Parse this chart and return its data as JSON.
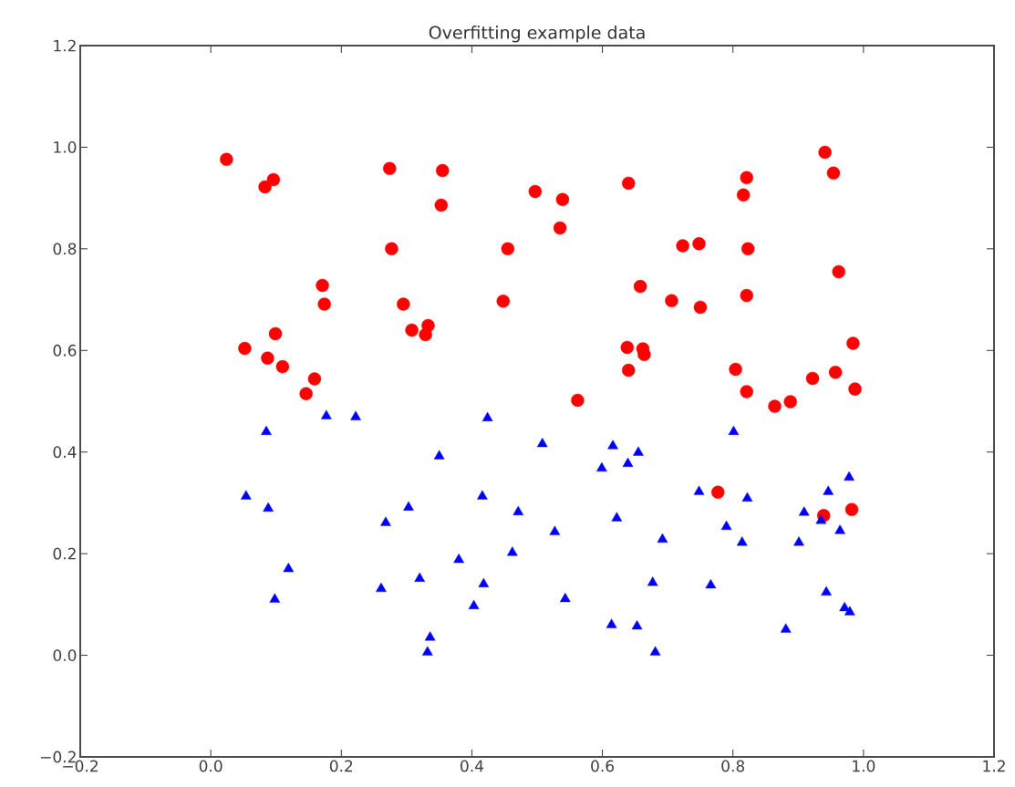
{
  "chart_data": {
    "type": "scatter",
    "title": "Overfitting example data",
    "xlim": [
      -0.2,
      1.2
    ],
    "ylim": [
      -0.2,
      1.2
    ],
    "xticks": [
      {
        "value": -0.2,
        "label": "−0.2"
      },
      {
        "value": 0,
        "label": "0.0"
      },
      {
        "value": 0.2,
        "label": "0.2"
      },
      {
        "value": 0.4,
        "label": "0.4"
      },
      {
        "value": 0.6,
        "label": "0.6"
      },
      {
        "value": 0.8,
        "label": "0.8"
      },
      {
        "value": 1,
        "label": "1.0"
      },
      {
        "value": 1.2,
        "label": "1.2"
      }
    ],
    "yticks": [
      {
        "value": -0.2,
        "label": "−0.2"
      },
      {
        "value": 0,
        "label": "0.0"
      },
      {
        "value": 0.2,
        "label": "0.2"
      },
      {
        "value": 0.4,
        "label": "0.4"
      },
      {
        "value": 0.6,
        "label": "0.6"
      },
      {
        "value": 0.8,
        "label": "0.8"
      },
      {
        "value": 1,
        "label": "1.0"
      },
      {
        "value": 1.2,
        "label": "1.2"
      }
    ],
    "grid": false,
    "series": [
      {
        "color": "#ff0000",
        "marker": "circle",
        "x": [
          0.024,
          0.083,
          0.096,
          0.274,
          0.355,
          0.353,
          0.277,
          0.455,
          0.171,
          0.174,
          0.295,
          0.448,
          0.099,
          0.052,
          0.087,
          0.11,
          0.308,
          0.333,
          0.329,
          0.159,
          0.146,
          0.941,
          0.954,
          0.497,
          0.539,
          0.64,
          0.821,
          0.816,
          0.535,
          0.723,
          0.748,
          0.823,
          0.962,
          0.658,
          0.706,
          0.75,
          0.821,
          0.638,
          0.662,
          0.664,
          0.64,
          0.562,
          0.984,
          0.804,
          0.957,
          0.922,
          0.821,
          0.987,
          0.864,
          0.888,
          0.777,
          0.939,
          0.982
        ],
        "values": [
          0.976,
          0.922,
          0.936,
          0.958,
          0.954,
          0.886,
          0.8,
          0.8,
          0.728,
          0.691,
          0.691,
          0.697,
          0.633,
          0.604,
          0.585,
          0.568,
          0.64,
          0.649,
          0.631,
          0.544,
          0.515,
          0.99,
          0.949,
          0.913,
          0.897,
          0.929,
          0.94,
          0.906,
          0.841,
          0.806,
          0.81,
          0.8,
          0.755,
          0.726,
          0.698,
          0.685,
          0.708,
          0.606,
          0.603,
          0.592,
          0.561,
          0.502,
          0.614,
          0.563,
          0.557,
          0.545,
          0.519,
          0.524,
          0.49,
          0.499,
          0.321,
          0.275,
          0.287
        ]
      },
      {
        "color": "#0000ff",
        "marker": "triangle",
        "x": [
          0.177,
          0.222,
          0.424,
          0.085,
          0.054,
          0.088,
          0.119,
          0.098,
          0.35,
          0.303,
          0.268,
          0.416,
          0.471,
          0.462,
          0.38,
          0.32,
          0.261,
          0.418,
          0.403,
          0.336,
          0.332,
          0.801,
          0.508,
          0.616,
          0.655,
          0.639,
          0.599,
          0.978,
          0.748,
          0.946,
          0.822,
          0.622,
          0.527,
          0.909,
          0.935,
          0.79,
          0.964,
          0.692,
          0.814,
          0.901,
          0.677,
          0.766,
          0.543,
          0.943,
          0.971,
          0.979,
          0.614,
          0.653,
          0.881,
          0.681
        ],
        "values": [
          0.471,
          0.469,
          0.467,
          0.44,
          0.313,
          0.289,
          0.17,
          0.11,
          0.392,
          0.291,
          0.261,
          0.313,
          0.282,
          0.202,
          0.188,
          0.151,
          0.131,
          0.14,
          0.097,
          0.035,
          0.006,
          0.44,
          0.416,
          0.412,
          0.399,
          0.377,
          0.368,
          0.35,
          0.322,
          0.322,
          0.309,
          0.27,
          0.243,
          0.281,
          0.265,
          0.253,
          0.245,
          0.228,
          0.222,
          0.222,
          0.143,
          0.138,
          0.111,
          0.124,
          0.093,
          0.085,
          0.06,
          0.057,
          0.051,
          0.006
        ]
      }
    ]
  }
}
